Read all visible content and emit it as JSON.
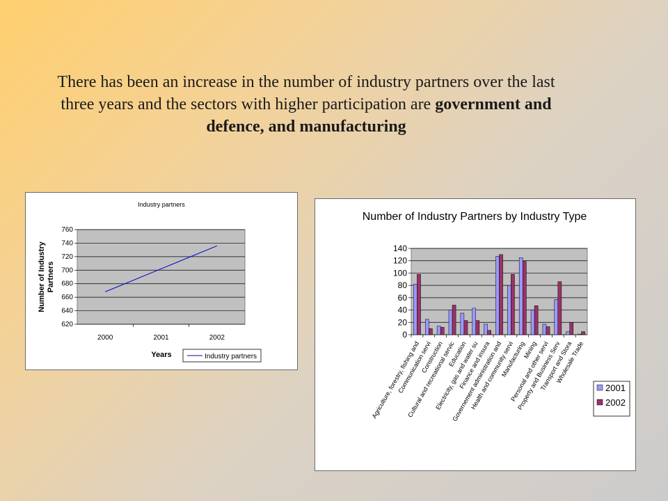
{
  "slide": {
    "headline_part1": "There has been an increase in the number of industry partners over the last three years and the sectors with higher participation are ",
    "headline_bold": "government and defence, and manufacturing"
  },
  "chart_data": [
    {
      "type": "line",
      "title": "Industry partners",
      "xlabel": "Years",
      "ylabel": "Number of Industry Partners",
      "categories": [
        "2000",
        "2001",
        "2002"
      ],
      "series": [
        {
          "name": "Industry partners",
          "values": [
            668,
            702,
            736
          ],
          "color": "#0000cc"
        }
      ],
      "ylim": [
        620,
        760
      ],
      "yticks": [
        620,
        640,
        660,
        680,
        700,
        720,
        740,
        760
      ],
      "grid": true,
      "legend": "bottom-right",
      "plot_background": "#c0c0c0"
    },
    {
      "type": "bar",
      "title": "Number of Industry Partners by Industry Type",
      "categories": [
        "Agriculture, forestry, fishing and",
        "Communication servi",
        "Construction",
        "Cultural and recreational servic",
        "Education",
        "Electricity, gas and water su",
        "Finance and insura",
        "Governement administration and",
        "Health and community servi",
        "Manufacturing",
        "Mining",
        "Personal and other servi",
        "Property and Business Serv",
        "Transport and Stora",
        "Wholesale Trade"
      ],
      "series": [
        {
          "name": "2001",
          "color": "#9999ff",
          "values": [
            82,
            25,
            14,
            40,
            35,
            43,
            17,
            127,
            80,
            125,
            40,
            17,
            57,
            5,
            1
          ]
        },
        {
          "name": "2002",
          "color": "#993366",
          "values": [
            98,
            10,
            12,
            48,
            23,
            23,
            7,
            130,
            98,
            119,
            47,
            13,
            86,
            20,
            5
          ]
        }
      ],
      "ylim": [
        0,
        140
      ],
      "yticks": [
        0,
        20,
        40,
        60,
        80,
        100,
        120,
        140
      ],
      "grid": true,
      "legend": "right",
      "plot_background": "#c0c0c0"
    }
  ]
}
